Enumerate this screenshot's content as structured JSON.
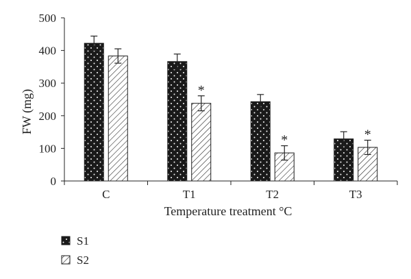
{
  "chart_data": {
    "type": "bar",
    "title": "",
    "xlabel": "Temperature treatment °C",
    "ylabel": "FW (mg)",
    "categories": [
      "C",
      "T1",
      "T2",
      "T3"
    ],
    "ylim": [
      0,
      500
    ],
    "yticks": [
      0,
      100,
      200,
      300,
      400,
      500
    ],
    "grid": false,
    "legend_position": "bottom-left",
    "series": [
      {
        "name": "S1",
        "pattern": "dots",
        "color": "#1a1a1a",
        "values": [
          422,
          366,
          243,
          129
        ],
        "errors": [
          22,
          23,
          22,
          22
        ],
        "significance": [
          "",
          "",
          "",
          ""
        ]
      },
      {
        "name": "S2",
        "pattern": "hatch",
        "color": "#1a1a1a",
        "values": [
          383,
          238,
          86,
          103
        ],
        "errors": [
          22,
          23,
          22,
          22
        ],
        "significance": [
          "",
          "*",
          "*",
          "*"
        ]
      }
    ]
  }
}
